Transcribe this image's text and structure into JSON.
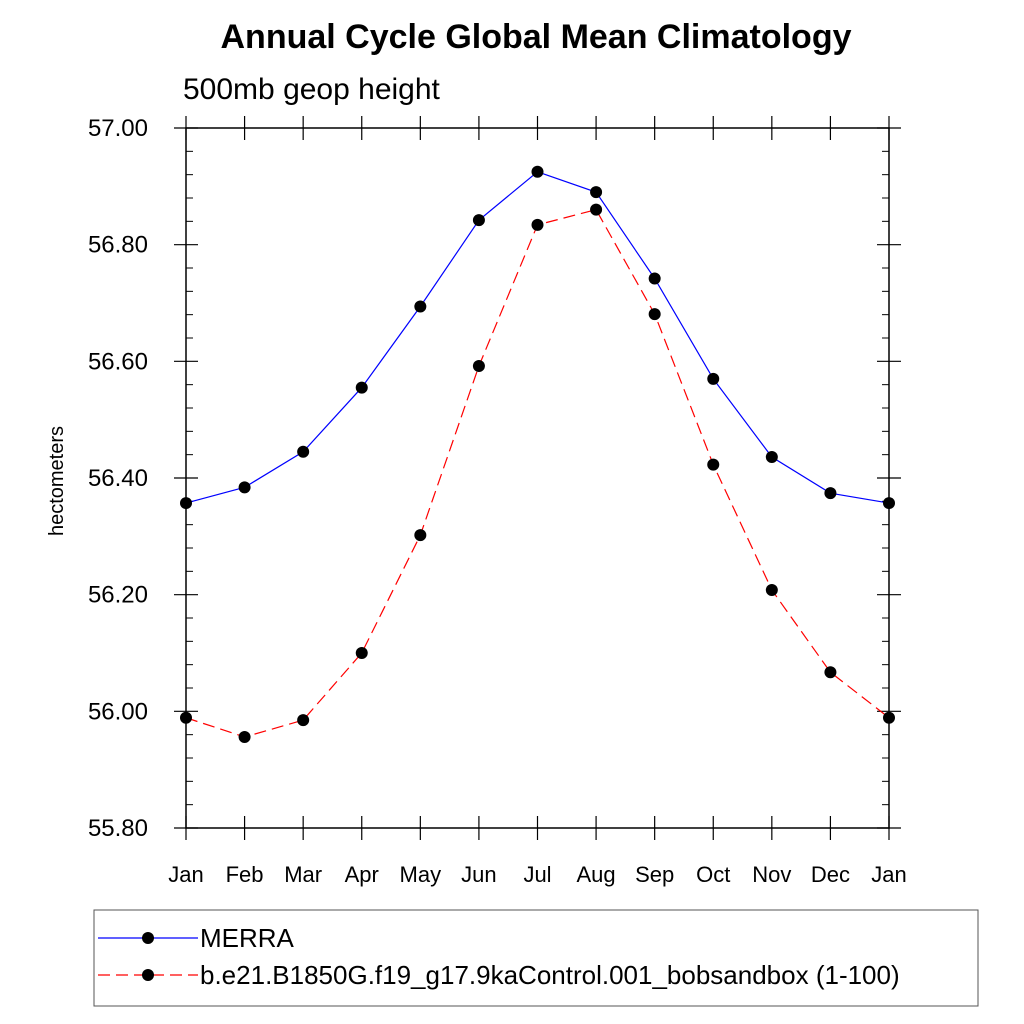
{
  "chart_data": {
    "type": "line",
    "title": "Annual Cycle Global Mean Climatology",
    "subtitle": "500mb geop height",
    "xlabel": "",
    "ylabel": "hectometers",
    "categories": [
      "Jan",
      "Feb",
      "Mar",
      "Apr",
      "May",
      "Jun",
      "Jul",
      "Aug",
      "Sep",
      "Oct",
      "Nov",
      "Dec",
      "Jan"
    ],
    "ylim": [
      55.8,
      57.0
    ],
    "yticks": [
      "55.80",
      "56.00",
      "56.20",
      "56.40",
      "56.60",
      "56.80",
      "57.00"
    ],
    "grid": false,
    "legend_position": "bottom",
    "series": [
      {
        "name": "MERRA",
        "color": "#0000ff",
        "dashed": false,
        "values": [
          56.357,
          56.384,
          56.445,
          56.555,
          56.694,
          56.842,
          56.925,
          56.89,
          56.742,
          56.57,
          56.436,
          56.374,
          56.357
        ]
      },
      {
        "name": "b.e21.B1850G.f19_g17.9kaControl.001_bobsandbox (1-100)",
        "color": "#ff0000",
        "dashed": true,
        "values": [
          55.989,
          55.956,
          55.985,
          56.1,
          56.302,
          56.592,
          56.834,
          56.86,
          56.681,
          56.423,
          56.208,
          56.067,
          55.989
        ]
      }
    ]
  }
}
